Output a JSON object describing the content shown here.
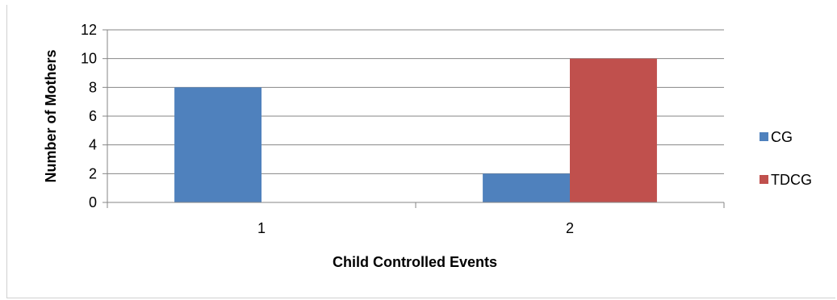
{
  "chart_data": {
    "type": "bar",
    "categories": [
      "1",
      "2"
    ],
    "series": [
      {
        "name": "CG",
        "values": [
          8,
          2
        ],
        "color": "#4F81BD"
      },
      {
        "name": "TDCG",
        "values": [
          0,
          10
        ],
        "color": "#C0504D"
      }
    ],
    "xlabel": "Child Controlled Events",
    "ylabel": "Number of Mothers",
    "ylim": [
      0,
      12
    ],
    "yticks": [
      0,
      2,
      4,
      6,
      8,
      10,
      12
    ],
    "grid": true,
    "legend_position": "right"
  }
}
